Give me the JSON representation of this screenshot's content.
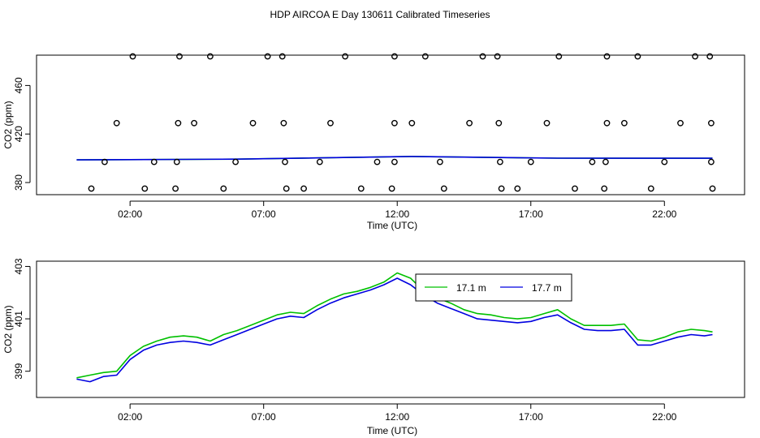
{
  "title": "HDP AIRCOA E  Day 130611  Calibrated Timeseries",
  "chart_data": [
    {
      "type": "scatter",
      "xlabel": "Time (UTC)",
      "ylabel": "CO2 (ppm)",
      "xlim": [
        -1.5,
        25.0
      ],
      "ylim": [
        370,
        485
      ],
      "x_ticks": [
        2,
        7,
        12,
        17,
        22
      ],
      "x_tick_labels": [
        "02:00",
        "07:00",
        "12:00",
        "17:00",
        "22:00"
      ],
      "y_ticks": [
        380,
        420,
        460
      ],
      "y_tick_labels": [
        "380",
        "420",
        "460"
      ],
      "grid": false,
      "points_high": [
        2.1,
        3.85,
        5.0,
        7.15,
        7.7,
        10.05,
        11.9,
        13.05,
        15.2,
        15.75,
        18.05,
        19.85,
        21.0,
        23.15,
        23.7
      ],
      "points_mid": [
        1.5,
        3.8,
        4.4,
        6.6,
        7.75,
        9.5,
        11.9,
        12.55,
        14.7,
        15.8,
        17.6,
        19.85,
        20.5,
        22.6,
        23.75
      ],
      "points_low": [
        1.05,
        2.9,
        3.75,
        5.95,
        7.8,
        9.1,
        11.25,
        11.9,
        13.6,
        15.85,
        17.0,
        19.3,
        19.8,
        22.0,
        23.75
      ],
      "points_vlow": [
        0.55,
        2.55,
        3.7,
        5.5,
        7.85,
        8.5,
        10.65,
        11.8,
        13.75,
        15.9,
        16.5,
        18.65,
        19.75,
        21.5,
        23.8
      ],
      "level_values": {
        "high": 484,
        "mid": 429,
        "low": 397,
        "vlow": 375
      },
      "series": [
        {
          "color": "#00c000",
          "x": [
            0,
            6,
            12.5,
            18,
            23.8
          ],
          "values": [
            398.7,
            399.3,
            401.5,
            400.1,
            400.0
          ]
        },
        {
          "color": "#0000e0",
          "x": [
            0,
            6,
            12.5,
            18,
            23.8
          ],
          "values": [
            398.7,
            399.3,
            401.5,
            400.1,
            400.0
          ]
        }
      ]
    },
    {
      "type": "line",
      "xlabel": "Time (UTC)",
      "ylabel": "CO2 (ppm)",
      "xlim": [
        -1.5,
        25.0
      ],
      "ylim": [
        398.0,
        403.2
      ],
      "x_ticks": [
        2,
        7,
        12,
        17,
        22
      ],
      "x_tick_labels": [
        "02:00",
        "07:00",
        "12:00",
        "17:00",
        "22:00"
      ],
      "y_ticks": [
        399,
        401,
        403
      ],
      "y_tick_labels": [
        "399",
        "401",
        "403"
      ],
      "grid": false,
      "legend": {
        "placement": "top-center"
      },
      "series": [
        {
          "name": "17.1 m",
          "color": "#00c000",
          "x": [
            0,
            0.5,
            1.0,
            1.5,
            2.0,
            2.5,
            3.0,
            3.5,
            4.0,
            4.5,
            5.0,
            5.5,
            6.0,
            6.5,
            7.0,
            7.5,
            8.0,
            8.5,
            9.0,
            9.5,
            10.0,
            10.5,
            11.0,
            11.5,
            12.0,
            12.5,
            13.0,
            13.5,
            14.0,
            14.5,
            15.0,
            15.5,
            16.0,
            16.5,
            17.0,
            17.5,
            18.0,
            18.5,
            19.0,
            19.5,
            20.0,
            20.5,
            21.0,
            21.5,
            22.0,
            22.5,
            23.0,
            23.5,
            23.8
          ],
          "values": [
            398.75,
            398.85,
            398.95,
            399.0,
            399.6,
            399.95,
            400.15,
            400.3,
            400.35,
            400.3,
            400.15,
            400.4,
            400.55,
            400.75,
            400.95,
            401.15,
            401.25,
            401.2,
            401.5,
            401.75,
            401.95,
            402.05,
            402.2,
            402.4,
            402.75,
            402.55,
            402.05,
            401.8,
            401.6,
            401.35,
            401.2,
            401.15,
            401.05,
            401.0,
            401.05,
            401.2,
            401.35,
            401.0,
            400.75,
            400.75,
            400.75,
            400.8,
            400.2,
            400.15,
            400.3,
            400.5,
            400.6,
            400.55,
            400.5
          ]
        },
        {
          "name": "17.7 m",
          "color": "#0000e0",
          "x": [
            0,
            0.5,
            1.0,
            1.5,
            2.0,
            2.5,
            3.0,
            3.5,
            4.0,
            4.5,
            5.0,
            5.5,
            6.0,
            6.5,
            7.0,
            7.5,
            8.0,
            8.5,
            9.0,
            9.5,
            10.0,
            10.5,
            11.0,
            11.5,
            12.0,
            12.5,
            13.0,
            13.5,
            14.0,
            14.5,
            15.0,
            15.5,
            16.0,
            16.5,
            17.0,
            17.5,
            18.0,
            18.5,
            19.0,
            19.5,
            20.0,
            20.5,
            21.0,
            21.5,
            22.0,
            22.5,
            23.0,
            23.5,
            23.8
          ],
          "values": [
            398.7,
            398.6,
            398.8,
            398.85,
            399.45,
            399.8,
            400.0,
            400.1,
            400.15,
            400.1,
            400.0,
            400.2,
            400.4,
            400.6,
            400.8,
            401.0,
            401.1,
            401.05,
            401.35,
            401.6,
            401.8,
            401.95,
            402.1,
            402.3,
            402.55,
            402.3,
            401.9,
            401.6,
            401.4,
            401.2,
            401.0,
            400.95,
            400.9,
            400.85,
            400.9,
            401.05,
            401.15,
            400.85,
            400.6,
            400.55,
            400.55,
            400.6,
            400.0,
            400.0,
            400.15,
            400.3,
            400.4,
            400.35,
            400.4
          ]
        }
      ]
    }
  ]
}
